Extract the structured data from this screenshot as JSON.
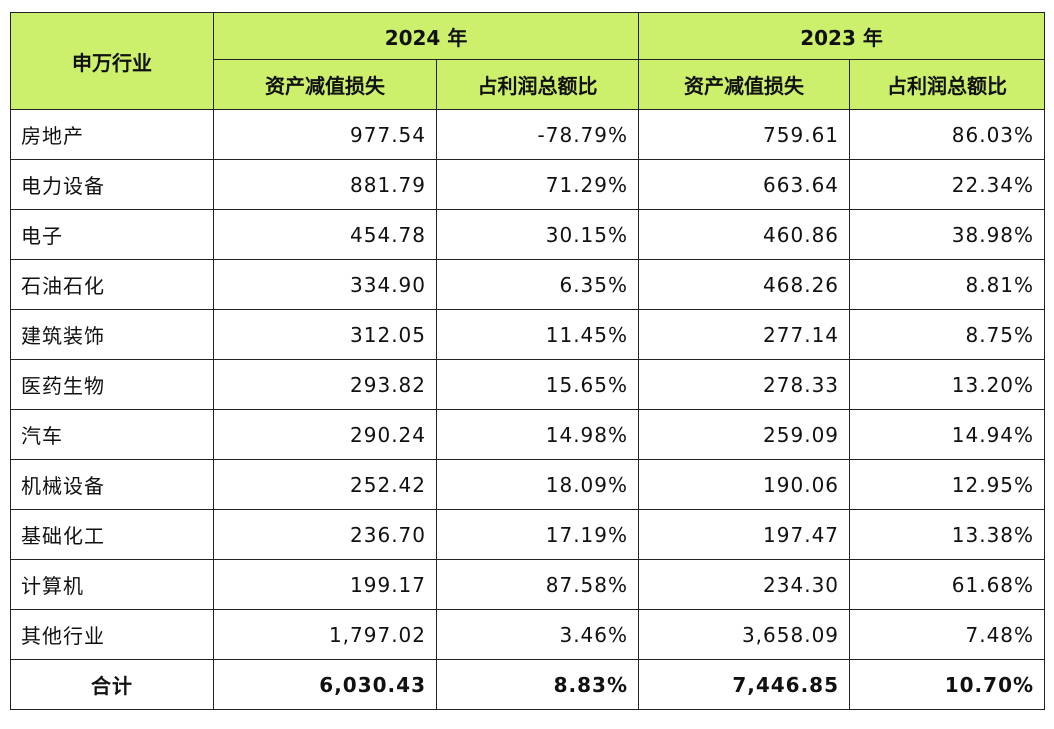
{
  "table": {
    "header": {
      "industry": "申万行业",
      "years": [
        "2024 年",
        "2023 年"
      ],
      "columns": [
        "资产减值损失",
        "占利润总额比",
        "资产减值损失",
        "占利润总额比"
      ]
    },
    "rows": [
      [
        "房地产",
        "977.54",
        "-78.79%",
        "759.61",
        "86.03%"
      ],
      [
        "电力设备",
        "881.79",
        "71.29%",
        "663.64",
        "22.34%"
      ],
      [
        "电子",
        "454.78",
        "30.15%",
        "460.86",
        "38.98%"
      ],
      [
        "石油石化",
        "334.90",
        "6.35%",
        "468.26",
        "8.81%"
      ],
      [
        "建筑装饰",
        "312.05",
        "11.45%",
        "277.14",
        "8.75%"
      ],
      [
        "医药生物",
        "293.82",
        "15.65%",
        "278.33",
        "13.20%"
      ],
      [
        "汽车",
        "290.24",
        "14.98%",
        "259.09",
        "14.94%"
      ],
      [
        "机械设备",
        "252.42",
        "18.09%",
        "190.06",
        "12.95%"
      ],
      [
        "基础化工",
        "236.70",
        "17.19%",
        "197.47",
        "13.38%"
      ],
      [
        "计算机",
        "199.17",
        "87.58%",
        "234.30",
        "61.68%"
      ],
      [
        "其他行业",
        "1,797.02",
        "3.46%",
        "3,658.09",
        "7.48%"
      ]
    ],
    "total": [
      "合计",
      "6,030.43",
      "8.83%",
      "7,446.85",
      "10.70%"
    ]
  }
}
